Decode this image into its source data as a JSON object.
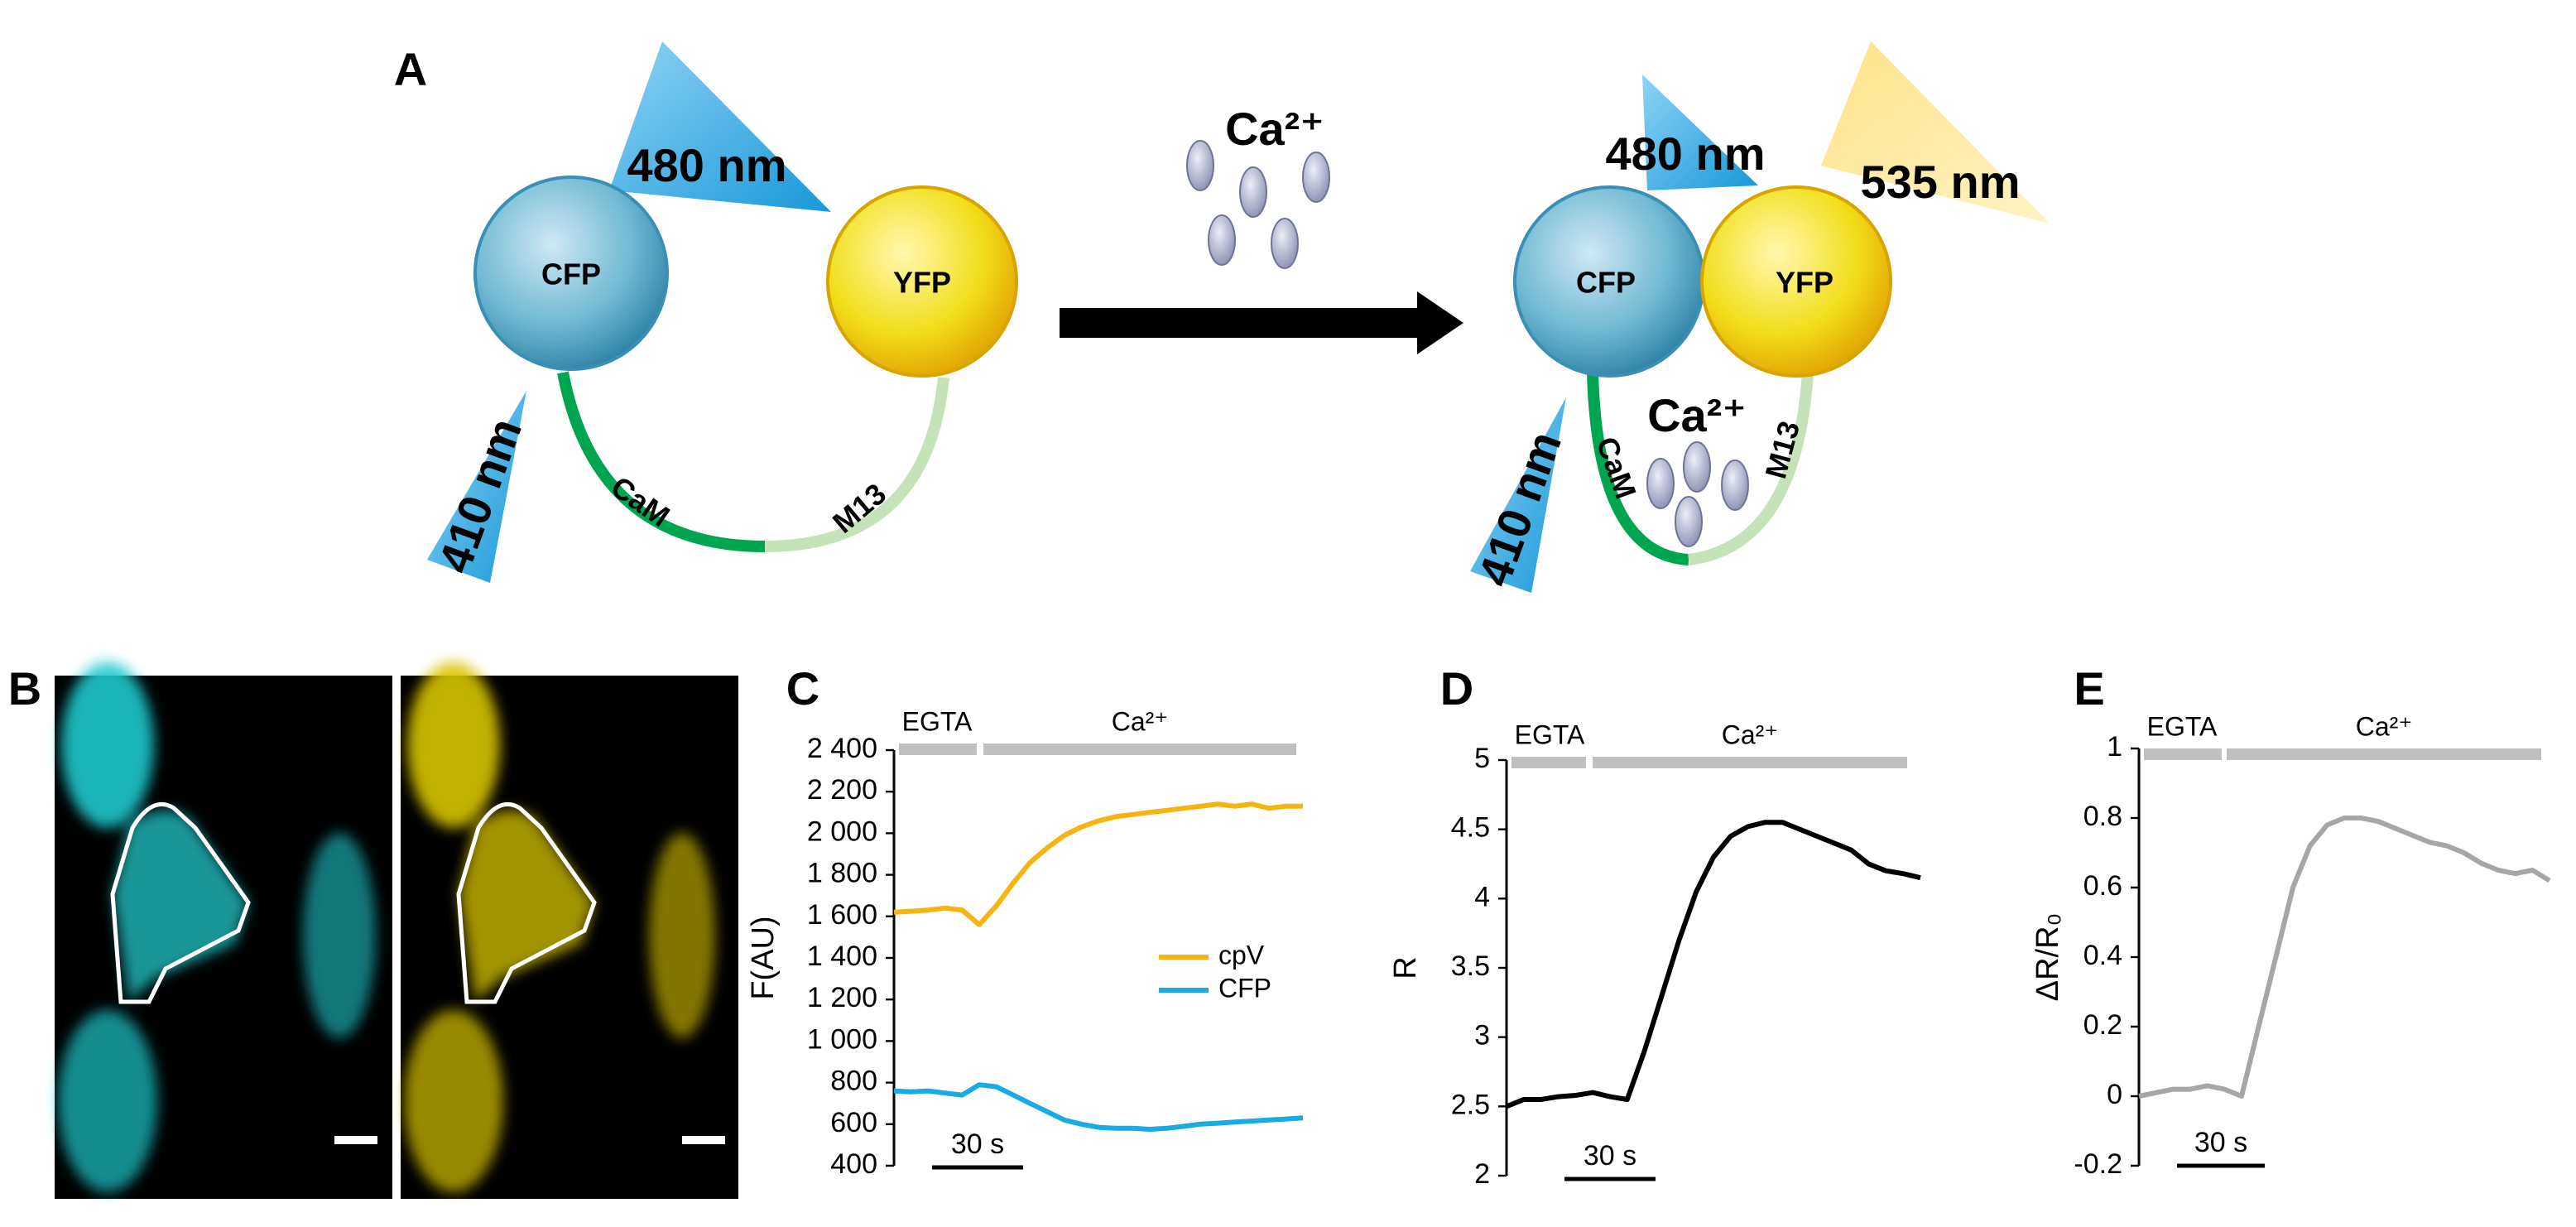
{
  "diagram": {
    "label": "A",
    "left": {
      "excitation": "480 nm",
      "donor": "CFP",
      "acceptor": "YFP",
      "source": "410 nm",
      "linker_a": "CaM",
      "linker_b": "M13"
    },
    "arrow_label": "Ca²⁺",
    "right": {
      "excitation": "480 nm",
      "emission": "535 nm",
      "donor": "CFP",
      "acceptor": "YFP",
      "source": "410 nm",
      "linker_a": "CaM",
      "linker_b": "M13",
      "bound": "Ca²⁺"
    }
  },
  "images": {
    "label": "B"
  },
  "chart_data": [
    {
      "type": "line",
      "panel_label": "C",
      "y_label": "F(AU)",
      "annotations": [
        "EGTA",
        "Ca²⁺"
      ],
      "scale_bar": "30 s",
      "legend": "right",
      "ylim": [
        400,
        2400
      ],
      "yticks": [
        {
          "value": 2400,
          "label": "2 400"
        },
        {
          "value": 2200,
          "label": "2 200"
        },
        {
          "value": 2000,
          "label": "2 000"
        },
        {
          "value": 1800,
          "label": "1 800"
        },
        {
          "value": 1600,
          "label": "1 600"
        },
        {
          "value": 1400,
          "label": "1 400"
        },
        {
          "value": 1200,
          "label": "1 200"
        },
        {
          "value": 1000,
          "label": "1 000"
        },
        800,
        600,
        400
      ],
      "series": [
        {
          "name": "cpV",
          "color": "#f5b40f",
          "values": [
            1620,
            1625,
            1630,
            1640,
            1630,
            1560,
            1650,
            1760,
            1860,
            1930,
            1990,
            2030,
            2060,
            2080,
            2090,
            2100,
            2110,
            2120,
            2130,
            2140,
            2130,
            2140,
            2120,
            2130,
            2130
          ]
        },
        {
          "name": "CFP",
          "color": "#1aabe2",
          "values": [
            760,
            755,
            760,
            750,
            740,
            790,
            780,
            740,
            700,
            660,
            620,
            600,
            585,
            580,
            580,
            575,
            580,
            590,
            600,
            605,
            610,
            615,
            620,
            625,
            630
          ]
        }
      ]
    },
    {
      "type": "line",
      "panel_label": "D",
      "y_label": "R",
      "annotations": [
        "EGTA",
        "Ca²⁺"
      ],
      "scale_bar": "30 s",
      "ylim": [
        2,
        5
      ],
      "yticks": [
        5,
        4.5,
        4,
        3.5,
        3,
        2.5,
        2
      ],
      "series": [
        {
          "color": "#000000",
          "values": [
            2.5,
            2.55,
            2.55,
            2.57,
            2.58,
            2.6,
            2.57,
            2.55,
            2.9,
            3.3,
            3.7,
            4.05,
            4.3,
            4.45,
            4.52,
            4.55,
            4.55,
            4.5,
            4.45,
            4.4,
            4.35,
            4.25,
            4.2,
            4.18,
            4.15
          ]
        }
      ]
    },
    {
      "type": "line",
      "panel_label": "E",
      "y_label": "ΔR/R₀",
      "annotations": [
        "EGTA",
        "Ca²⁺"
      ],
      "scale_bar": "30 s",
      "ylim": [
        -0.2,
        1
      ],
      "yticks": [
        1,
        0.8,
        0.6,
        0.4,
        0.2,
        0,
        -0.2
      ],
      "series": [
        {
          "color": "#a6a6a6",
          "values": [
            0,
            0.01,
            0.02,
            0.02,
            0.03,
            0.02,
            0,
            0.2,
            0.4,
            0.6,
            0.72,
            0.78,
            0.8,
            0.8,
            0.79,
            0.77,
            0.75,
            0.73,
            0.72,
            0.7,
            0.67,
            0.65,
            0.64,
            0.65,
            0.62
          ]
        }
      ]
    }
  ]
}
